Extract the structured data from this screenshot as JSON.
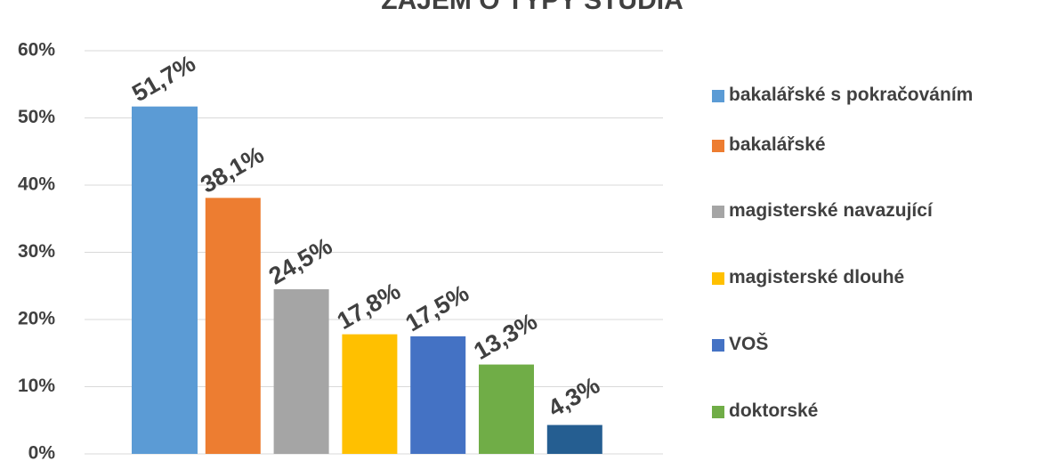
{
  "chart_data": {
    "type": "bar",
    "title": "ZÁJEM O TYPY STUDIA",
    "categories": [
      "bakalářské s pokračováním",
      "bakalářské",
      "magisterské navazující",
      "magisterské dlouhé",
      "VOŠ",
      "doktorské",
      null
    ],
    "values": [
      51.7,
      38.1,
      24.5,
      17.8,
      17.5,
      13.3,
      4.3
    ],
    "value_labels": [
      "51,7%",
      "38,1%",
      "24,5%",
      "17,8%",
      "17,5%",
      "13,3%",
      "4,3%"
    ],
    "colors": [
      "#5b9bd5",
      "#ed7d31",
      "#a5a5a5",
      "#ffc000",
      "#4472c4",
      "#70ad47",
      "#255e91"
    ],
    "ylim": [
      0,
      60
    ],
    "yticks": [
      {
        "value": 0,
        "label": "0%"
      },
      {
        "value": 10,
        "label": "10%"
      },
      {
        "value": 20,
        "label": "20%"
      },
      {
        "value": 30,
        "label": "30%"
      },
      {
        "value": 40,
        "label": "40%"
      },
      {
        "value": 50,
        "label": "50%"
      },
      {
        "value": 60,
        "label": "60%"
      }
    ],
    "grid": true,
    "legend": "right"
  }
}
